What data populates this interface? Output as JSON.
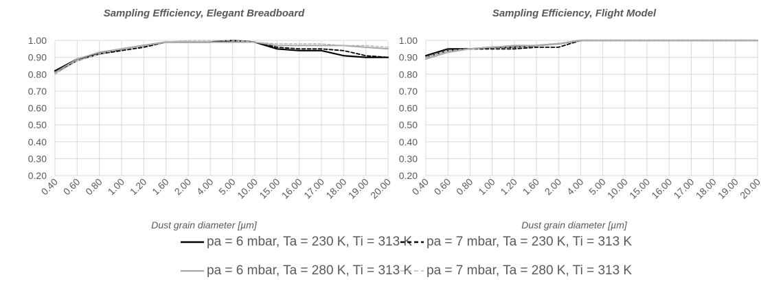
{
  "colors": {
    "s1": "#000000",
    "s2": "#000000",
    "s3": "#a6a6a6",
    "s4": "#b7b7b7",
    "grid": "#d9d9d9",
    "text": "#595959"
  },
  "legend": {
    "items": [
      {
        "label": "pa = 6 mbar, Ta = 230 K, Ti = 313 K",
        "color": "#000000",
        "dash": "solid"
      },
      {
        "label": "pa = 7 mbar, Ta = 230 K, Ti = 313 K",
        "color": "#000000",
        "dash": "dashed"
      },
      {
        "label": "pa = 6 mbar, Ta = 280 K, Ti = 313 K",
        "color": "#a6a6a6",
        "dash": "solid"
      },
      {
        "label": "pa = 7 mbar, Ta = 280 K, Ti = 313 K",
        "color": "#b7b7b7",
        "dash": "dashed"
      }
    ]
  },
  "chart_data": [
    {
      "type": "line",
      "title": "Sampling Efficiency, Elegant Breadboard",
      "xlabel": "Dust grain diameter [µm]",
      "ylabel": "",
      "ylim": [
        0.2,
        1.0
      ],
      "yticks": [
        "0.20",
        "0.30",
        "0.40",
        "0.50",
        "0.60",
        "0.70",
        "0.80",
        "0.90",
        "1.00"
      ],
      "grid": "vertical and horizontal",
      "categories": [
        "0.40",
        "0.60",
        "0.80",
        "1.00",
        "1.20",
        "1.60",
        "2.00",
        "4.00",
        "5.00",
        "10.00",
        "15.00",
        "16.00",
        "17.00",
        "18.00",
        "19.00",
        "20.00"
      ],
      "series": [
        {
          "name": "pa = 6 mbar, Ta = 230 K, Ti = 313 K",
          "values": [
            0.82,
            0.89,
            0.92,
            0.95,
            0.97,
            0.99,
            0.99,
            0.99,
            1.0,
            0.99,
            0.95,
            0.94,
            0.94,
            0.91,
            0.9,
            0.9
          ]
        },
        {
          "name": "pa = 7 mbar, Ta = 230 K, Ti = 313 K",
          "values": [
            0.81,
            0.88,
            0.92,
            0.94,
            0.96,
            0.99,
            0.99,
            0.99,
            1.0,
            0.99,
            0.96,
            0.95,
            0.95,
            0.94,
            0.91,
            0.9
          ]
        },
        {
          "name": "pa = 6 mbar, Ta = 280 K, Ti = 313 K",
          "values": [
            0.81,
            0.89,
            0.93,
            0.95,
            0.97,
            0.99,
            0.99,
            0.99,
            0.99,
            0.99,
            0.97,
            0.97,
            0.97,
            0.97,
            0.96,
            0.95
          ]
        },
        {
          "name": "pa = 7 mbar, Ta = 280 K, Ti = 313 K",
          "values": [
            0.8,
            0.88,
            0.92,
            0.95,
            0.97,
            0.99,
            1.0,
            1.0,
            1.0,
            0.99,
            0.98,
            0.98,
            0.98,
            0.97,
            0.97,
            0.96
          ]
        }
      ]
    },
    {
      "type": "line",
      "title": "Sampling Efficiency, Flight Model",
      "xlabel": "Dust grain diameter [µm]",
      "ylabel": "",
      "ylim": [
        0.2,
        1.0
      ],
      "yticks": [
        "0.20",
        "0.30",
        "0.40",
        "0.50",
        "0.60",
        "0.70",
        "0.80",
        "0.90",
        "1.00"
      ],
      "grid": "vertical and horizontal",
      "categories": [
        "0.40",
        "0.60",
        "0.80",
        "1.00",
        "1.20",
        "1.60",
        "2.00",
        "4.00",
        "5.00",
        "10.00",
        "15.00",
        "16.00",
        "17.00",
        "18.00",
        "19.00",
        "20.00"
      ],
      "series": [
        {
          "name": "pa = 6 mbar, Ta = 230 K, Ti = 313 K",
          "values": [
            0.91,
            0.95,
            0.95,
            0.96,
            0.96,
            0.97,
            0.98,
            1.0,
            1.0,
            1.0,
            1.0,
            1.0,
            1.0,
            1.0,
            1.0,
            1.0
          ]
        },
        {
          "name": "pa = 7 mbar, Ta = 230 K, Ti = 313 K",
          "values": [
            0.9,
            0.94,
            0.95,
            0.95,
            0.95,
            0.96,
            0.96,
            1.0,
            1.0,
            1.0,
            1.0,
            1.0,
            1.0,
            1.0,
            1.0,
            1.0
          ]
        },
        {
          "name": "pa = 6 mbar, Ta = 280 K, Ti = 313 K",
          "values": [
            0.89,
            0.93,
            0.95,
            0.96,
            0.97,
            0.97,
            0.98,
            1.0,
            1.0,
            1.0,
            1.0,
            1.0,
            1.0,
            1.0,
            1.0,
            1.0
          ]
        },
        {
          "name": "pa = 7 mbar, Ta = 280 K, Ti = 313 K",
          "values": [
            0.9,
            0.94,
            0.95,
            0.96,
            0.96,
            0.97,
            0.98,
            1.0,
            1.0,
            1.0,
            1.0,
            1.0,
            1.0,
            1.0,
            1.0,
            1.0
          ]
        }
      ]
    }
  ]
}
